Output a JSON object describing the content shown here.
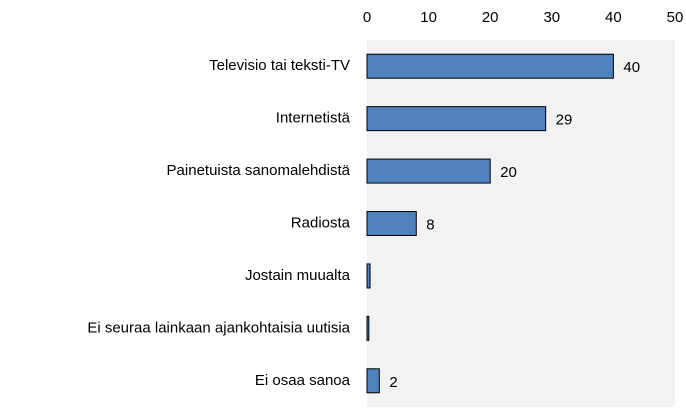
{
  "chart_data": {
    "type": "bar",
    "orientation": "horizontal",
    "categories": [
      "Televisio tai teksti-TV",
      "Internetistä",
      "Painetuista sanomalehdistä",
      "Radiosta",
      "Jostain muualta",
      "Ei seuraa lainkaan ajankohtaisia uutisia",
      "Ei osaa sanoa"
    ],
    "values": [
      40,
      29,
      20,
      8,
      0.5,
      0.3,
      2
    ],
    "value_labels": [
      "40",
      "29",
      "20",
      "8",
      null,
      null,
      "2"
    ],
    "color": "#4f81bd",
    "xlim": [
      0,
      50
    ],
    "xticks": [
      0,
      10,
      20,
      30,
      40,
      50
    ]
  }
}
